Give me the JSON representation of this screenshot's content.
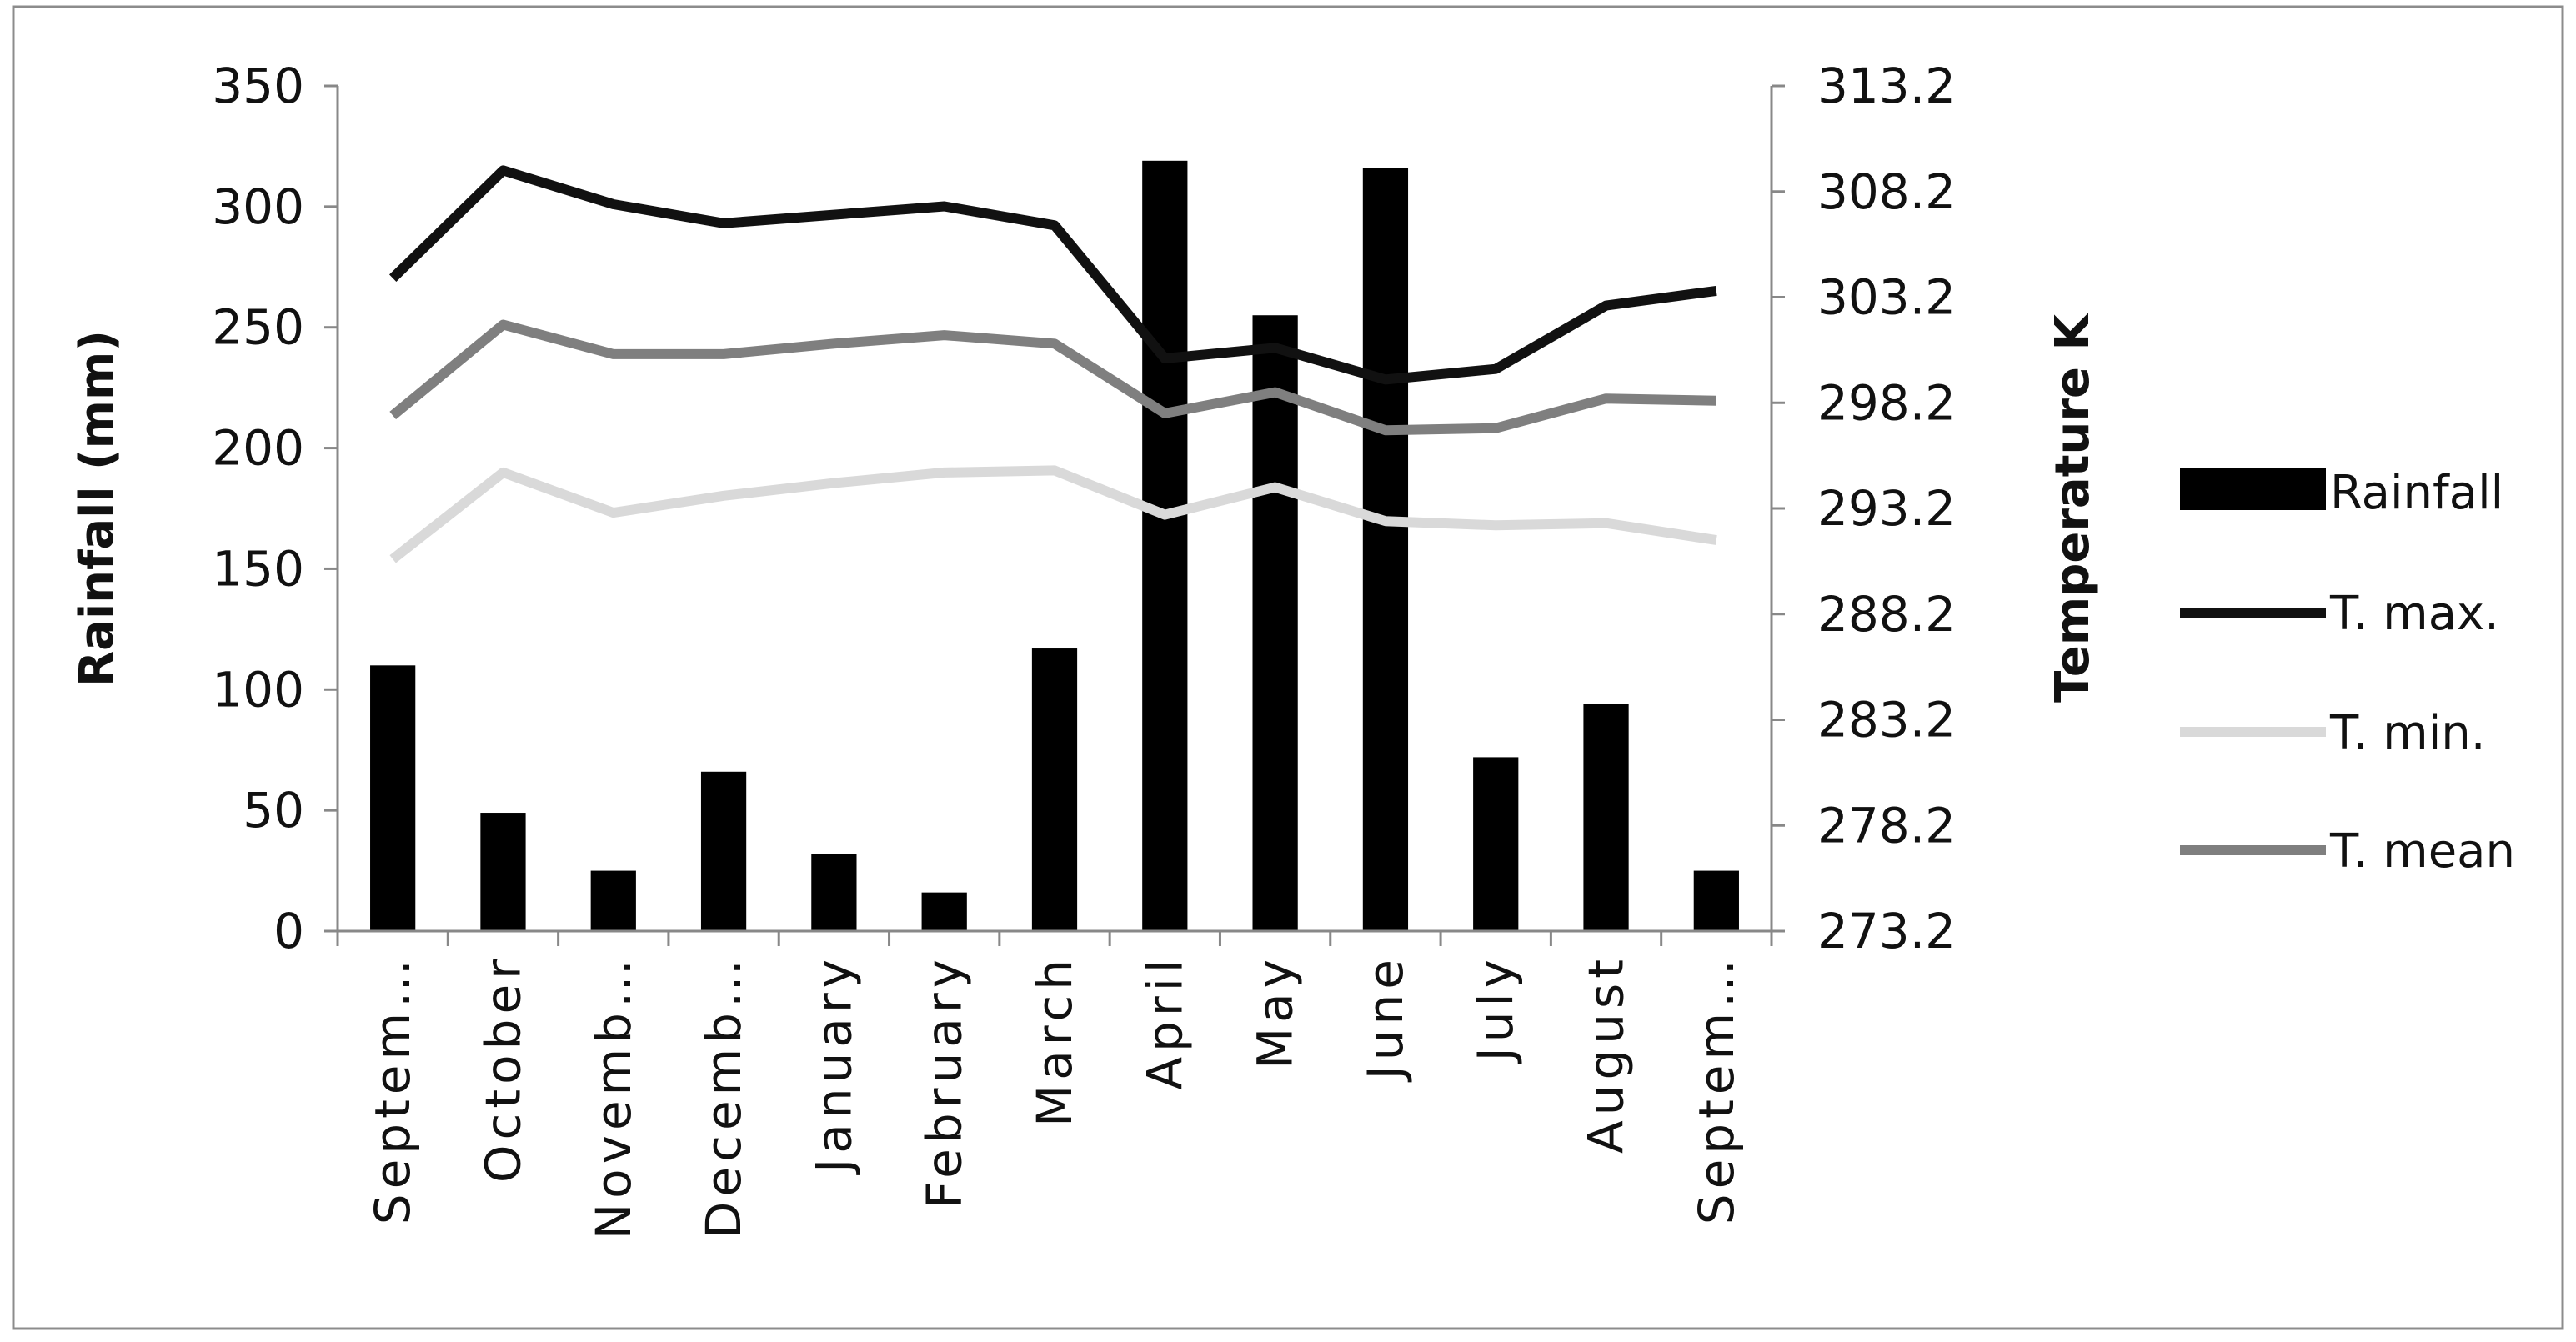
{
  "chart_data": {
    "type": "bar+line",
    "categories": [
      "Septem…",
      "October",
      "Novemb…",
      "Decemb…",
      "January",
      "February",
      "March",
      "April",
      "May",
      "June",
      "July",
      "August",
      "Septem…"
    ],
    "bar_series": {
      "name": "Rainfall",
      "axis": "left",
      "color": "#000000",
      "values": [
        110,
        49,
        25,
        66,
        32,
        16,
        117,
        319,
        255,
        316,
        72,
        94,
        25
      ]
    },
    "line_series": [
      {
        "name": "T. max.",
        "axis": "right",
        "color": "#111111",
        "values": [
          304.1,
          309.2,
          307.6,
          306.7,
          307.1,
          307.5,
          306.6,
          300.3,
          300.8,
          299.3,
          299.8,
          302.8,
          303.5
        ]
      },
      {
        "name": "T. min.",
        "axis": "right",
        "color": "#d9d9d9",
        "values": [
          290.8,
          294.9,
          293.0,
          293.8,
          294.4,
          294.9,
          295.0,
          292.9,
          294.2,
          292.6,
          292.4,
          292.5,
          291.7
        ]
      },
      {
        "name": "T. mean",
        "axis": "right",
        "color": "#7f7f7f",
        "values": [
          297.6,
          301.9,
          300.5,
          300.5,
          301.0,
          301.4,
          301.0,
          297.7,
          298.7,
          296.9,
          297.0,
          298.4,
          298.3
        ]
      }
    ],
    "left_axis": {
      "label": "Rainfall (mm)",
      "ylim": [
        0,
        350
      ],
      "ticks": [
        "0",
        "50",
        "100",
        "150",
        "200",
        "250",
        "300",
        "350"
      ]
    },
    "right_axis": {
      "label": "Temperature K",
      "ylim": [
        273.2,
        313.2
      ],
      "ticks": [
        "273.2",
        "278.2",
        "283.2",
        "288.2",
        "293.2",
        "298.2",
        "303.2",
        "308.2",
        "313.2"
      ]
    },
    "legend": {
      "placement": "right",
      "entries": [
        "Rainfall",
        "T. max.",
        "T. min.",
        "T. mean"
      ]
    },
    "grid": false
  }
}
